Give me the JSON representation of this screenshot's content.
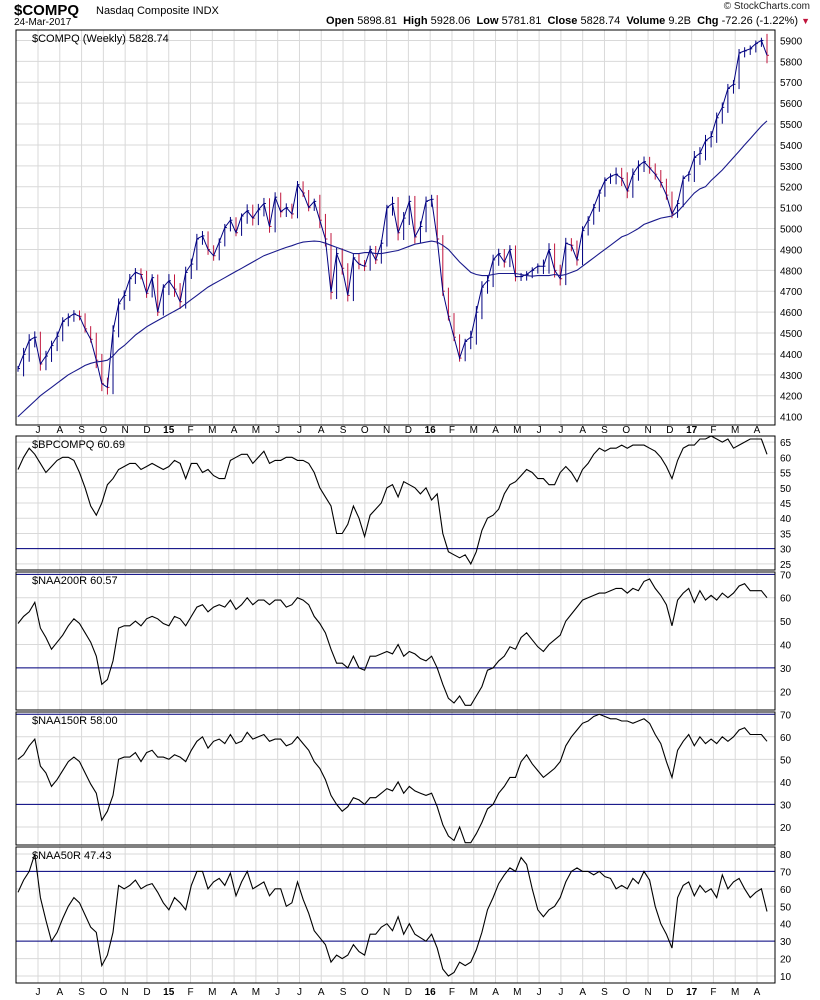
{
  "header": {
    "symbol": "$COMPQ",
    "description": "Nasdaq Composite INDX",
    "date": "24-Mar-2017",
    "brand": "© StockCharts.com",
    "open_label": "Open",
    "open_value": "5898.81",
    "high_label": "High",
    "high_value": "5928.06",
    "low_label": "Low",
    "low_value": "5781.81",
    "close_label": "Close",
    "close_value": "5828.74",
    "volume_label": "Volume",
    "volume_value": "9.2B",
    "chg_label": "Chg",
    "chg_value": "-72.26 (-1.22%)",
    "chg_arrow": "▼"
  },
  "colors": {
    "grid": "#d9d9d9",
    "frame": "#000000",
    "price_up": "#000080",
    "price_down": "#c0143c",
    "moving_average": "#1a1a8c",
    "indicator_line": "#000000",
    "reference_line": "#000080",
    "down_arrow": "#c0143c"
  },
  "chart_data": [
    {
      "type": "line",
      "panel": "price",
      "title": "$COMPQ (Weekly) 5828.74",
      "x_labels": [
        "J",
        "A",
        "S",
        "O",
        "N",
        "D",
        "15",
        "F",
        "M",
        "A",
        "M",
        "J",
        "J",
        "A",
        "S",
        "O",
        "N",
        "D",
        "16",
        "F",
        "M",
        "A",
        "M",
        "J",
        "J",
        "A",
        "S",
        "O",
        "N",
        "D",
        "17",
        "F",
        "M",
        "A"
      ],
      "bold_x_labels": [
        "15",
        "16",
        "17"
      ],
      "y_ticks": [
        4100,
        4200,
        4300,
        4400,
        4500,
        4600,
        4700,
        4800,
        4900,
        5000,
        5100,
        5200,
        5300,
        5400,
        5500,
        5600,
        5700,
        5800,
        5900
      ],
      "ylim": [
        4060,
        5950
      ],
      "series": [
        {
          "name": "$COMPQ",
          "values": [
            4330,
            4398,
            4465,
            4480,
            4352,
            4390,
            4440,
            4485,
            4555,
            4575,
            4592,
            4580,
            4520,
            4470,
            4370,
            4258,
            4240,
            4510,
            4640,
            4680,
            4760,
            4790,
            4780,
            4690,
            4765,
            4600,
            4720,
            4750,
            4710,
            4650,
            4790,
            4830,
            4950,
            4965,
            4900,
            4870,
            4935,
            5005,
            5040,
            4980,
            5060,
            5085,
            5050,
            5090,
            5120,
            5010,
            5150,
            5080,
            5100,
            5070,
            5210,
            5170,
            5100,
            5130,
            5040,
            4950,
            4695,
            4880,
            4810,
            4680,
            4860,
            4830,
            4820,
            4900,
            4850,
            4930,
            5100,
            5120,
            4980,
            5050,
            5130,
            4960,
            5010,
            5130,
            5140,
            4950,
            4700,
            4580,
            4480,
            4380,
            4460,
            4480,
            4600,
            4720,
            4750,
            4850,
            4880,
            4840,
            4900,
            4770,
            4770,
            4780,
            4800,
            4820,
            4820,
            4900,
            4800,
            4760,
            4930,
            4920,
            4850,
            4990,
            5040,
            5100,
            5170,
            5230,
            5250,
            5260,
            5240,
            5180,
            5260,
            5300,
            5320,
            5290,
            5260,
            5220,
            5160,
            5070,
            5120,
            5240,
            5260,
            5340,
            5360,
            5420,
            5440,
            5530,
            5580,
            5670,
            5690,
            5840,
            5850,
            5860,
            5885,
            5900,
            5829
          ]
        },
        {
          "name": "MA",
          "values": [
            4100,
            4125,
            4150,
            4175,
            4200,
            4220,
            4240,
            4260,
            4280,
            4300,
            4315,
            4330,
            4345,
            4355,
            4362,
            4365,
            4370,
            4390,
            4420,
            4440,
            4465,
            4490,
            4510,
            4530,
            4545,
            4560,
            4575,
            4590,
            4605,
            4620,
            4640,
            4660,
            4680,
            4700,
            4720,
            4735,
            4750,
            4765,
            4780,
            4795,
            4810,
            4825,
            4840,
            4855,
            4870,
            4880,
            4890,
            4900,
            4910,
            4918,
            4928,
            4935,
            4938,
            4940,
            4938,
            4930,
            4920,
            4910,
            4900,
            4890,
            4880,
            4880,
            4885,
            4885,
            4880,
            4880,
            4885,
            4890,
            4895,
            4905,
            4915,
            4925,
            4930,
            4935,
            4940,
            4935,
            4920,
            4900,
            4870,
            4840,
            4815,
            4790,
            4780,
            4775,
            4775,
            4780,
            4785,
            4785,
            4785,
            4785,
            4780,
            4775,
            4772,
            4775,
            4775,
            4775,
            4780,
            4775,
            4780,
            4790,
            4800,
            4820,
            4840,
            4860,
            4880,
            4900,
            4920,
            4940,
            4960,
            4970,
            4985,
            5000,
            5020,
            5030,
            5040,
            5050,
            5055,
            5060,
            5080,
            5110,
            5140,
            5170,
            5190,
            5200,
            5230,
            5255,
            5280,
            5310,
            5340,
            5370,
            5400,
            5430,
            5460,
            5490,
            5515
          ]
        }
      ]
    },
    {
      "type": "line",
      "panel": "indicator",
      "title": "$BPCOMPQ 60.69",
      "y_ticks": [
        25,
        30,
        35,
        40,
        45,
        50,
        55,
        60,
        65
      ],
      "ylim": [
        23,
        67
      ],
      "reference_lines": [
        30
      ],
      "series": [
        {
          "name": "$BPCOMPQ",
          "values": [
            56,
            60,
            63,
            61,
            58,
            55,
            57,
            59,
            60,
            60,
            59,
            55,
            50,
            44,
            41,
            45,
            51,
            53,
            56,
            57,
            58,
            58,
            56,
            57,
            58,
            57,
            56,
            57,
            59,
            58,
            53,
            58,
            58,
            55,
            56,
            54,
            53,
            53,
            59,
            60,
            61,
            61,
            58,
            60,
            62,
            58,
            59,
            59,
            60,
            60,
            59,
            59,
            58,
            55,
            50,
            47,
            44,
            35,
            35,
            38,
            44,
            40,
            34,
            41,
            43,
            45,
            50,
            51,
            47,
            52,
            51,
            50,
            48,
            50,
            46,
            48,
            35,
            29,
            28,
            27,
            28,
            25,
            29,
            36,
            40,
            41,
            43,
            48,
            51,
            52,
            54,
            56,
            55,
            53,
            53,
            51,
            51,
            55,
            57,
            55,
            52,
            56,
            58,
            61,
            63,
            62,
            63,
            63,
            64,
            63,
            64,
            64,
            64,
            63,
            62,
            60,
            57,
            53,
            59,
            63,
            64,
            64,
            66,
            66,
            67,
            66,
            65,
            66,
            63,
            64,
            65,
            66,
            66,
            66,
            61
          ]
        }
      ]
    },
    {
      "type": "line",
      "panel": "indicator",
      "title": "$NAA200R 60.57",
      "y_ticks": [
        20,
        30,
        40,
        50,
        60,
        70
      ],
      "ylim": [
        12,
        71
      ],
      "reference_lines": [
        70,
        30
      ],
      "series": [
        {
          "name": "$NAA200R",
          "values": [
            49,
            52,
            54,
            58,
            47,
            43,
            38,
            41,
            44,
            48,
            51,
            49,
            45,
            41,
            35,
            23,
            25,
            33,
            47,
            48,
            48,
            50,
            48,
            51,
            52,
            51,
            49,
            48,
            52,
            51,
            48,
            52,
            56,
            57,
            54,
            56,
            57,
            56,
            59,
            55,
            57,
            60,
            57,
            59,
            59,
            57,
            59,
            59,
            56,
            57,
            60,
            59,
            57,
            52,
            49,
            45,
            38,
            32,
            32,
            30,
            35,
            30,
            29,
            35,
            35,
            36,
            37,
            36,
            40,
            35,
            37,
            36,
            34,
            33,
            35,
            30,
            23,
            17,
            15,
            18,
            14,
            14,
            18,
            22,
            29,
            30,
            33,
            35,
            39,
            38,
            43,
            45,
            42,
            39,
            37,
            40,
            42,
            44,
            50,
            53,
            56,
            59,
            60,
            61,
            62,
            62,
            63,
            64,
            64,
            62,
            64,
            63,
            67,
            68,
            64,
            61,
            57,
            48,
            59,
            62,
            64,
            58,
            63,
            59,
            61,
            59,
            62,
            60,
            62,
            65,
            66,
            63,
            63,
            63,
            60
          ]
        }
      ]
    },
    {
      "type": "line",
      "panel": "indicator",
      "title": "$NAA150R 58.00",
      "y_ticks": [
        20,
        30,
        40,
        50,
        60,
        70
      ],
      "ylim": [
        12,
        71
      ],
      "reference_lines": [
        70,
        30
      ],
      "series": [
        {
          "name": "$NAA150R",
          "values": [
            50,
            52,
            56,
            59,
            47,
            44,
            38,
            41,
            45,
            49,
            51,
            49,
            44,
            39,
            35,
            23,
            27,
            34,
            50,
            51,
            51,
            53,
            49,
            53,
            54,
            51,
            51,
            50,
            52,
            51,
            49,
            54,
            58,
            60,
            55,
            58,
            59,
            57,
            61,
            57,
            58,
            62,
            59,
            60,
            61,
            58,
            59,
            59,
            56,
            57,
            60,
            57,
            54,
            49,
            46,
            41,
            34,
            30,
            27,
            29,
            33,
            32,
            30,
            33,
            33,
            35,
            37,
            36,
            40,
            35,
            38,
            36,
            35,
            34,
            35,
            29,
            21,
            16,
            14,
            20,
            13,
            13,
            17,
            22,
            28,
            30,
            35,
            38,
            42,
            42,
            49,
            52,
            48,
            45,
            42,
            44,
            46,
            49,
            56,
            60,
            63,
            66,
            67,
            69,
            70,
            69,
            68,
            68,
            67,
            67,
            66,
            67,
            68,
            66,
            61,
            57,
            49,
            42,
            54,
            58,
            61,
            56,
            60,
            57,
            59,
            57,
            60,
            58,
            60,
            63,
            64,
            61,
            61,
            61,
            58
          ]
        }
      ]
    },
    {
      "type": "line",
      "panel": "indicator",
      "title": "$NAA50R 47.43",
      "y_ticks": [
        10,
        20,
        30,
        40,
        50,
        60,
        70,
        80
      ],
      "ylim": [
        6,
        84
      ],
      "reference_lines": [
        70,
        30
      ],
      "series": [
        {
          "name": "$NAA50R",
          "values": [
            58,
            65,
            70,
            80,
            55,
            42,
            30,
            35,
            43,
            50,
            55,
            52,
            45,
            38,
            35,
            16,
            22,
            35,
            62,
            60,
            62,
            65,
            60,
            62,
            63,
            58,
            52,
            48,
            55,
            52,
            48,
            62,
            70,
            70,
            60,
            64,
            66,
            62,
            69,
            56,
            64,
            70,
            60,
            62,
            64,
            56,
            60,
            60,
            50,
            52,
            64,
            54,
            46,
            36,
            32,
            28,
            18,
            22,
            20,
            22,
            28,
            24,
            22,
            34,
            34,
            38,
            40,
            36,
            44,
            34,
            40,
            34,
            32,
            30,
            34,
            26,
            14,
            10,
            12,
            18,
            16,
            18,
            25,
            35,
            48,
            55,
            63,
            68,
            72,
            70,
            78,
            74,
            60,
            48,
            44,
            48,
            50,
            55,
            64,
            70,
            72,
            70,
            70,
            68,
            70,
            67,
            66,
            60,
            62,
            60,
            66,
            63,
            70,
            65,
            50,
            40,
            34,
            26,
            55,
            62,
            64,
            56,
            62,
            58,
            60,
            55,
            68,
            60,
            64,
            66,
            60,
            55,
            58,
            60,
            47
          ]
        }
      ]
    }
  ]
}
